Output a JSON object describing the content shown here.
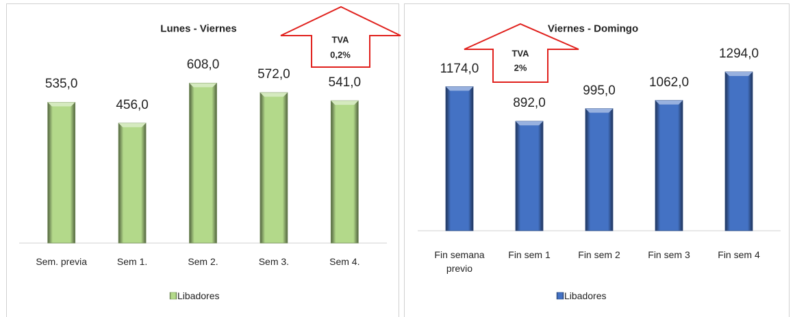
{
  "chart_data": [
    {
      "type": "bar",
      "title": "Lunes - Viernes",
      "categories": [
        "Sem. previa",
        "Sem 1.",
        "Sem 2.",
        "Sem 3.",
        "Sem 4."
      ],
      "series": [
        {
          "name": "Libadores",
          "color": "#b3d98a",
          "values": [
            535,
            456,
            608,
            572,
            541
          ],
          "value_labels": [
            "535,0",
            "456,0",
            "608,0",
            "572,0",
            "541,0"
          ]
        }
      ],
      "ylim": [
        0,
        700
      ],
      "annotations": [
        "TVA",
        "0,2%"
      ]
    },
    {
      "type": "bar",
      "title": "Viernes - Domingo",
      "categories": [
        "Fin semana previo",
        "Fin sem 1",
        "Fin sem 2",
        "Fin sem 3",
        "Fin sem 4"
      ],
      "series": [
        {
          "name": "Libadores",
          "color": "#4472c4",
          "values": [
            1174,
            892,
            995,
            1062,
            1294
          ],
          "value_labels": [
            "1174,0",
            "892,0",
            "995,0",
            "1062,0",
            "1294,0"
          ]
        }
      ],
      "ylim": [
        0,
        1400
      ],
      "annotations": [
        "TVA",
        "2%"
      ]
    }
  ]
}
